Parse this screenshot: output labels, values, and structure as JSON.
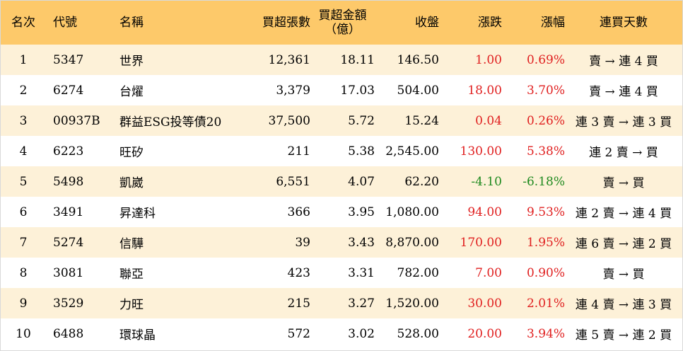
{
  "colors": {
    "header_bg": "#fdc96a",
    "stripe_bg": "#fdf1d8",
    "up": "#e02020",
    "down": "#1f8a1f"
  },
  "headers": {
    "rank": "名次",
    "code": "代號",
    "name": "名稱",
    "volume": "買超張數",
    "amount_line1": "買超金額",
    "amount_line2": "（億）",
    "close": "收盤",
    "change": "漲跌",
    "pct": "漲幅",
    "days": "連買天數"
  },
  "rows": [
    {
      "rank": "1",
      "code": "5347",
      "name": "世界",
      "volume": "12,361",
      "amount": "18.11",
      "close": "146.50",
      "change": "1.00",
      "pct": "0.69%",
      "days": "賣 → 連 4 買",
      "dir": "up"
    },
    {
      "rank": "2",
      "code": "6274",
      "name": "台燿",
      "volume": "3,379",
      "amount": "17.03",
      "close": "504.00",
      "change": "18.00",
      "pct": "3.70%",
      "days": "賣 → 連 4 買",
      "dir": "up"
    },
    {
      "rank": "3",
      "code": "00937B",
      "name": "群益ESG投等債20",
      "volume": "37,500",
      "amount": "5.72",
      "close": "15.24",
      "change": "0.04",
      "pct": "0.26%",
      "days": "連 3 賣 → 連 3 買",
      "dir": "up"
    },
    {
      "rank": "4",
      "code": "6223",
      "name": "旺矽",
      "volume": "211",
      "amount": "5.38",
      "close": "2,545.00",
      "change": "130.00",
      "pct": "5.38%",
      "days": "連 2 賣 → 買",
      "dir": "up"
    },
    {
      "rank": "5",
      "code": "5498",
      "name": "凱崴",
      "volume": "6,551",
      "amount": "4.07",
      "close": "62.20",
      "change": "-4.10",
      "pct": "-6.18%",
      "days": "賣 → 買",
      "dir": "down"
    },
    {
      "rank": "6",
      "code": "3491",
      "name": "昇達科",
      "volume": "366",
      "amount": "3.95",
      "close": "1,080.00",
      "change": "94.00",
      "pct": "9.53%",
      "days": "連 2 賣 → 連 4 買",
      "dir": "up"
    },
    {
      "rank": "7",
      "code": "5274",
      "name": "信驊",
      "volume": "39",
      "amount": "3.43",
      "close": "8,870.00",
      "change": "170.00",
      "pct": "1.95%",
      "days": "連 6 賣 → 連 2 買",
      "dir": "up"
    },
    {
      "rank": "8",
      "code": "3081",
      "name": "聯亞",
      "volume": "423",
      "amount": "3.31",
      "close": "782.00",
      "change": "7.00",
      "pct": "0.90%",
      "days": "賣 → 買",
      "dir": "up"
    },
    {
      "rank": "9",
      "code": "3529",
      "name": "力旺",
      "volume": "215",
      "amount": "3.27",
      "close": "1,520.00",
      "change": "30.00",
      "pct": "2.01%",
      "days": "連 4 賣 → 連 3 買",
      "dir": "up"
    },
    {
      "rank": "10",
      "code": "6488",
      "name": "環球晶",
      "volume": "572",
      "amount": "3.02",
      "close": "528.00",
      "change": "20.00",
      "pct": "3.94%",
      "days": "連 5 賣 → 連 2 買",
      "dir": "up"
    }
  ]
}
